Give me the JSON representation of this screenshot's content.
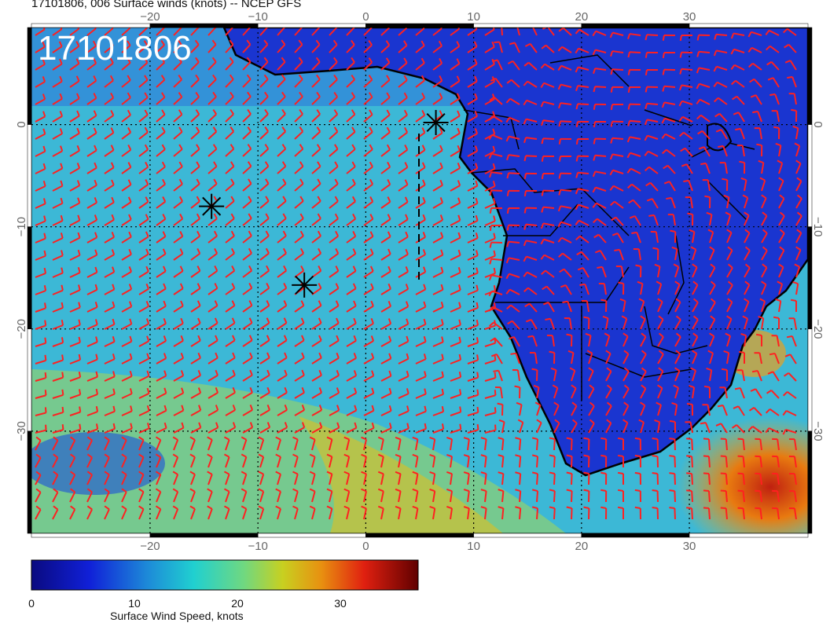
{
  "title": "17101806, 006 Surface winds (knots) -- NCEP GFS",
  "stamp": "17101806",
  "lon_ticks": [
    -20,
    -10,
    0,
    10,
    20,
    30
  ],
  "lat_ticks": [
    0,
    -10,
    -20,
    -30
  ],
  "lon_range": [
    -31,
    41
  ],
  "lat_range": [
    -40,
    9.5
  ],
  "colorbar": {
    "label": "Surface Wind Speed, knots",
    "range": [
      0,
      36
    ],
    "ticks": [
      "0",
      "10",
      "20",
      "30"
    ]
  },
  "markers": [
    {
      "lon": 6.5,
      "lat": 0.2
    },
    {
      "lon": -14.3,
      "lat": -8.0
    },
    {
      "lon": -5.7,
      "lat": -15.7
    }
  ],
  "colors": {
    "barb": "#ff2020",
    "land": "#1a35d0",
    "ocean": "#3fb8d8"
  }
}
